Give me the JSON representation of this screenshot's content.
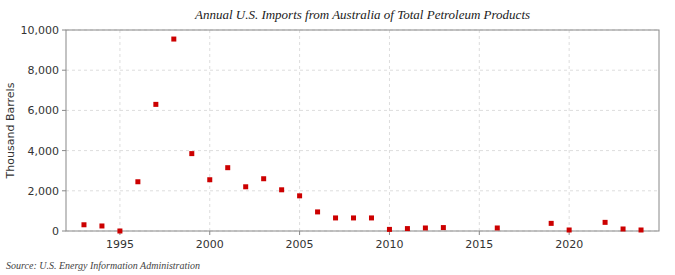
{
  "chart_data": {
    "type": "scatter",
    "title": "Annual U.S. Imports from Australia of Total Petroleum Products",
    "ylabel": "Thousand Barrels",
    "annotations": [
      "Source: U.S. Energy Information Administration"
    ],
    "x": [
      1993,
      1994,
      1995,
      1996,
      1997,
      1998,
      1999,
      2000,
      2001,
      2002,
      2003,
      2004,
      2005,
      2006,
      2007,
      2008,
      2009,
      2010,
      2011,
      2012,
      2013,
      2016,
      2019,
      2020,
      2022,
      2023,
      2024
    ],
    "values": [
      310,
      250,
      0,
      2450,
      6300,
      9550,
      3850,
      2550,
      3150,
      2200,
      2600,
      2050,
      1750,
      950,
      650,
      650,
      650,
      80,
      120,
      150,
      170,
      150,
      380,
      50,
      430,
      100,
      50
    ],
    "color": "#cc0000",
    "marker": "square",
    "xlim": [
      1992,
      2025
    ],
    "ylim": [
      0,
      10000
    ],
    "xticks": [
      1995,
      2000,
      2005,
      2010,
      2015,
      2020
    ],
    "yticks": [
      0,
      {
        "value": 2000,
        "label": "2,000"
      },
      {
        "value": 4000,
        "label": "4,000"
      },
      {
        "value": 6000,
        "label": "6,000"
      },
      {
        "value": 8000,
        "label": "8,000"
      },
      {
        "value": 10000,
        "label": "10,000"
      }
    ],
    "grid": true
  }
}
